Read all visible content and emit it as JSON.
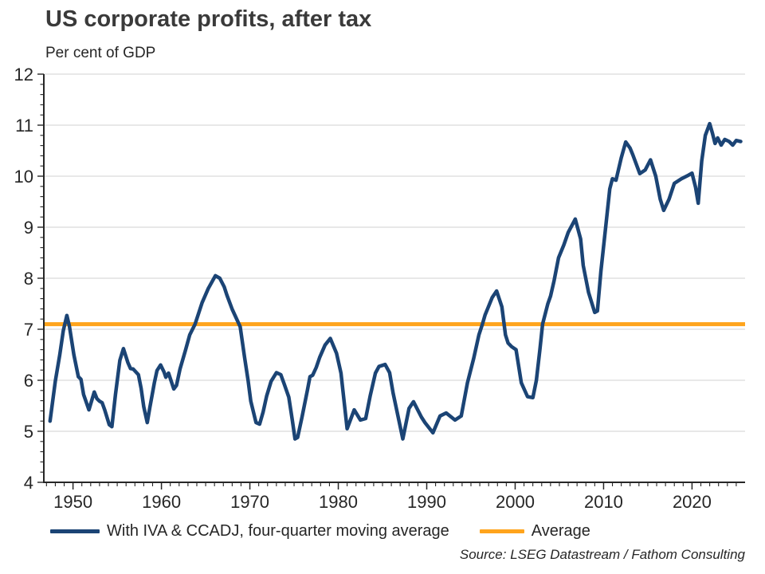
{
  "header": {
    "title": "US corporate profits, after tax",
    "subtitle": "Per cent of GDP"
  },
  "chart_data": {
    "type": "line",
    "title": "US corporate profits, after tax",
    "subtitle": "Per cent of GDP",
    "xlabel": "",
    "ylabel": "Per cent of GDP",
    "xlim": [
      1946.7,
      2026.0
    ],
    "ylim": [
      4,
      12
    ],
    "x_major_ticks": [
      1950,
      1960,
      1970,
      1980,
      1990,
      2000,
      2010,
      2020
    ],
    "x_minor_tick_step": 1,
    "x_minor_tick_range": [
      1947,
      2025
    ],
    "y_major_ticks": [
      4,
      5,
      6,
      7,
      8,
      9,
      10,
      11,
      12
    ],
    "y_minor_tick_step": 0.2,
    "grid": "horizontal-major",
    "grid_color": "#d9d9d9",
    "axis_color": "#262626",
    "tick_label_color": "#262626",
    "legend_position": "bottom-left",
    "series": [
      {
        "name": "With IVA & CCADJ, four-quarter moving average",
        "type": "line",
        "color": "#1b4475",
        "stroke_width": 4.5,
        "points": [
          [
            1947.4,
            5.2
          ],
          [
            1948.0,
            5.98
          ],
          [
            1948.5,
            6.5
          ],
          [
            1948.9,
            6.97
          ],
          [
            1949.3,
            7.27
          ],
          [
            1949.6,
            7.05
          ],
          [
            1950.1,
            6.5
          ],
          [
            1950.6,
            6.07
          ],
          [
            1950.9,
            6.02
          ],
          [
            1951.2,
            5.72
          ],
          [
            1951.8,
            5.42
          ],
          [
            1952.4,
            5.77
          ],
          [
            1952.7,
            5.64
          ],
          [
            1953.0,
            5.59
          ],
          [
            1953.3,
            5.56
          ],
          [
            1953.6,
            5.41
          ],
          [
            1954.1,
            5.13
          ],
          [
            1954.4,
            5.09
          ],
          [
            1954.8,
            5.72
          ],
          [
            1955.3,
            6.39
          ],
          [
            1955.7,
            6.62
          ],
          [
            1956.2,
            6.35
          ],
          [
            1956.5,
            6.23
          ],
          [
            1956.8,
            6.22
          ],
          [
            1957.4,
            6.11
          ],
          [
            1957.7,
            5.84
          ],
          [
            1958.0,
            5.48
          ],
          [
            1958.4,
            5.17
          ],
          [
            1958.7,
            5.48
          ],
          [
            1959.2,
            5.95
          ],
          [
            1959.5,
            6.19
          ],
          [
            1959.9,
            6.3
          ],
          [
            1960.3,
            6.16
          ],
          [
            1960.5,
            6.06
          ],
          [
            1960.8,
            6.14
          ],
          [
            1961.4,
            5.83
          ],
          [
            1961.7,
            5.9
          ],
          [
            1962.1,
            6.22
          ],
          [
            1962.7,
            6.58
          ],
          [
            1963.2,
            6.89
          ],
          [
            1963.8,
            7.1
          ],
          [
            1964.6,
            7.52
          ],
          [
            1965.3,
            7.8
          ],
          [
            1966.1,
            8.05
          ],
          [
            1966.6,
            8.0
          ],
          [
            1967.1,
            7.83
          ],
          [
            1967.4,
            7.67
          ],
          [
            1968.0,
            7.39
          ],
          [
            1968.9,
            7.05
          ],
          [
            1969.4,
            6.45
          ],
          [
            1969.8,
            6.0
          ],
          [
            1970.1,
            5.59
          ],
          [
            1970.7,
            5.17
          ],
          [
            1971.1,
            5.14
          ],
          [
            1971.5,
            5.38
          ],
          [
            1971.9,
            5.69
          ],
          [
            1972.4,
            5.98
          ],
          [
            1973.0,
            6.15
          ],
          [
            1973.5,
            6.11
          ],
          [
            1973.9,
            5.92
          ],
          [
            1974.4,
            5.67
          ],
          [
            1974.8,
            5.22
          ],
          [
            1975.1,
            4.85
          ],
          [
            1975.4,
            4.88
          ],
          [
            1975.9,
            5.28
          ],
          [
            1976.5,
            5.8
          ],
          [
            1976.8,
            6.07
          ],
          [
            1977.1,
            6.1
          ],
          [
            1977.5,
            6.25
          ],
          [
            1977.9,
            6.45
          ],
          [
            1978.5,
            6.69
          ],
          [
            1979.1,
            6.82
          ],
          [
            1979.8,
            6.53
          ],
          [
            1980.3,
            6.14
          ],
          [
            1981.0,
            5.05
          ],
          [
            1981.8,
            5.42
          ],
          [
            1982.5,
            5.22
          ],
          [
            1983.1,
            5.25
          ],
          [
            1983.6,
            5.69
          ],
          [
            1984.2,
            6.14
          ],
          [
            1984.6,
            6.27
          ],
          [
            1985.3,
            6.31
          ],
          [
            1985.8,
            6.15
          ],
          [
            1986.2,
            5.75
          ],
          [
            1987.3,
            4.85
          ],
          [
            1988.0,
            5.45
          ],
          [
            1988.5,
            5.58
          ],
          [
            1989.4,
            5.28
          ],
          [
            1989.8,
            5.17
          ],
          [
            1990.7,
            4.97
          ],
          [
            1991.5,
            5.3
          ],
          [
            1992.2,
            5.36
          ],
          [
            1993.2,
            5.22
          ],
          [
            1993.9,
            5.3
          ],
          [
            1994.6,
            5.95
          ],
          [
            1995.3,
            6.42
          ],
          [
            1995.9,
            6.89
          ],
          [
            1996.3,
            7.1
          ],
          [
            1996.6,
            7.28
          ],
          [
            1996.9,
            7.41
          ],
          [
            1997.4,
            7.62
          ],
          [
            1997.9,
            7.75
          ],
          [
            1998.5,
            7.44
          ],
          [
            1998.9,
            6.89
          ],
          [
            1999.2,
            6.73
          ],
          [
            1999.6,
            6.66
          ],
          [
            2000.1,
            6.6
          ],
          [
            2000.7,
            5.95
          ],
          [
            2001.4,
            5.68
          ],
          [
            2002.0,
            5.66
          ],
          [
            2002.4,
            6.0
          ],
          [
            2002.8,
            6.6
          ],
          [
            2003.1,
            7.1
          ],
          [
            2003.7,
            7.5
          ],
          [
            2004.0,
            7.65
          ],
          [
            2004.4,
            7.95
          ],
          [
            2004.9,
            8.4
          ],
          [
            2005.5,
            8.65
          ],
          [
            2006.0,
            8.9
          ],
          [
            2006.8,
            9.16
          ],
          [
            2007.4,
            8.77
          ],
          [
            2007.7,
            8.25
          ],
          [
            2008.3,
            7.72
          ],
          [
            2009.0,
            7.33
          ],
          [
            2009.3,
            7.36
          ],
          [
            2009.7,
            8.14
          ],
          [
            2010.2,
            8.95
          ],
          [
            2010.7,
            9.75
          ],
          [
            2011.0,
            9.95
          ],
          [
            2011.4,
            9.92
          ],
          [
            2012.0,
            10.36
          ],
          [
            2012.5,
            10.67
          ],
          [
            2013.0,
            10.55
          ],
          [
            2013.3,
            10.42
          ],
          [
            2014.1,
            10.05
          ],
          [
            2014.7,
            10.12
          ],
          [
            2015.3,
            10.32
          ],
          [
            2015.9,
            10.0
          ],
          [
            2016.4,
            9.55
          ],
          [
            2016.8,
            9.33
          ],
          [
            2017.4,
            9.55
          ],
          [
            2018.0,
            9.86
          ],
          [
            2018.8,
            9.95
          ],
          [
            2019.6,
            10.02
          ],
          [
            2020.0,
            10.06
          ],
          [
            2020.4,
            9.78
          ],
          [
            2020.7,
            9.47
          ],
          [
            2021.1,
            10.3
          ],
          [
            2021.5,
            10.8
          ],
          [
            2022.0,
            11.03
          ],
          [
            2022.3,
            10.85
          ],
          [
            2022.6,
            10.64
          ],
          [
            2022.9,
            10.75
          ],
          [
            2023.3,
            10.61
          ],
          [
            2023.7,
            10.72
          ],
          [
            2024.2,
            10.68
          ],
          [
            2024.6,
            10.61
          ],
          [
            2025.0,
            10.7
          ],
          [
            2025.5,
            10.68
          ]
        ]
      },
      {
        "name": "Average",
        "type": "hline",
        "color": "#ffa41c",
        "stroke_width": 5,
        "value": 7.1
      }
    ]
  },
  "footer": {
    "source": "Source: LSEG Datastream / Fathom Consulting"
  }
}
